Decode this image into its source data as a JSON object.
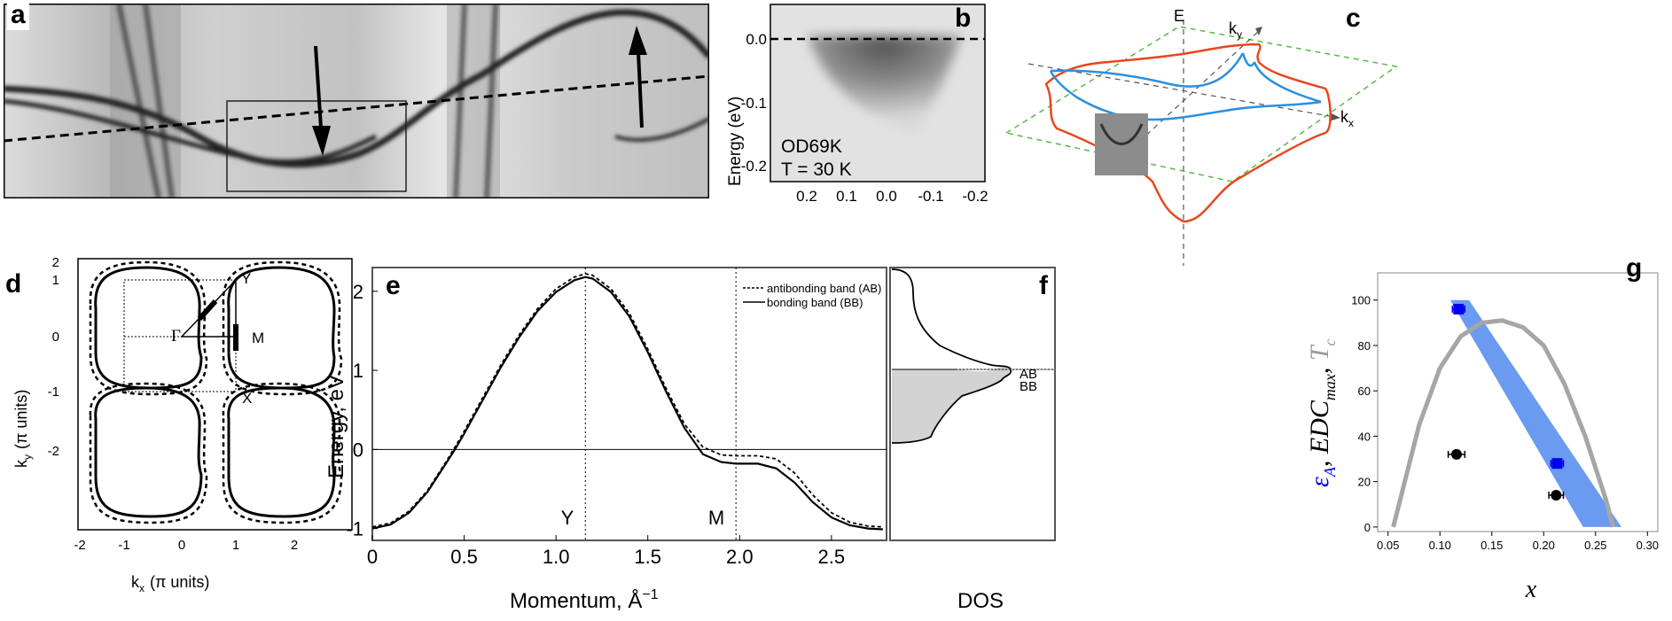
{
  "panels": {
    "a": {
      "letter": "a"
    },
    "b": {
      "letter": "b",
      "ylabel": "Energy  (eV)",
      "yticks": [
        "0.0",
        "-0.1",
        "-0.2"
      ],
      "xticks": [
        "0.2",
        "0.1",
        "0.0",
        "-0.1",
        "-0.2"
      ],
      "sample": "OD69K",
      "temperature": "T = 30 K"
    },
    "c": {
      "letter": "c",
      "axis_e": "E",
      "axis_ky": "k",
      "axis_ky_sub": "y",
      "axis_kx": "k",
      "axis_kx_sub": "x"
    },
    "d": {
      "letter": "d",
      "ylabel": "k",
      "ylabel_sub": "y",
      "ylabel_units": "(π units)",
      "xlabel": "k",
      "xlabel_sub": "x",
      "xlabel_units": "(π units)",
      "xticks": [
        "-2",
        "-1",
        "0",
        "1",
        "2"
      ],
      "yticks": [
        "2",
        "1",
        "0",
        "-1",
        "-2"
      ],
      "point_gamma": "Γ",
      "point_y": "Y",
      "point_m": "M",
      "point_x": "X"
    },
    "e": {
      "letter": "e",
      "ylabel": "Energy, eV",
      "xlabel_main": "Momentum, Å",
      "xlabel_exp": "−1",
      "xticks": [
        "0",
        "0.5",
        "1.0",
        "1.5",
        "2.0",
        "2.5"
      ],
      "yticks": [
        "2",
        "1",
        "0",
        "-1"
      ],
      "marker_y": "Y",
      "marker_m": "M",
      "legend_ab": "antibonding band (AB)",
      "legend_bb": "bonding band (BB)"
    },
    "f": {
      "letter": "f",
      "xlabel": "DOS",
      "label_ab": "AB",
      "label_bb": "BB"
    },
    "g": {
      "letter": "g",
      "xlabel": "x",
      "ylabel_parts": [
        "ε",
        "A",
        ", ",
        "EDC",
        "max",
        ", ",
        "T",
        "c"
      ],
      "xticks": [
        "0.05",
        "0.10",
        "0.15",
        "0.20",
        "0.25",
        "0.30"
      ],
      "yticks": [
        "0",
        "20",
        "40",
        "60",
        "80",
        "100"
      ]
    }
  },
  "colors": {
    "blue": "#0000ee",
    "band_blue": "#5b8ff0",
    "gray_curve": "#a6a6a6",
    "red": "#e8461e",
    "light_blue": "#2a8fe0",
    "green_dash": "#59b84a"
  },
  "chart_data": [
    {
      "type": "line",
      "panel": "e",
      "xlabel": "Momentum, Å−1",
      "ylabel": "Energy, eV",
      "xlim": [
        0,
        2.8
      ],
      "ylim": [
        -1.15,
        2.3
      ],
      "x": [
        0,
        0.1,
        0.2,
        0.3,
        0.4,
        0.45,
        0.5,
        0.6,
        0.7,
        0.8,
        0.9,
        1.0,
        1.1,
        1.16,
        1.2,
        1.3,
        1.4,
        1.5,
        1.6,
        1.7,
        1.8,
        1.9,
        1.98,
        2.1,
        2.2,
        2.3,
        2.4,
        2.5,
        2.6,
        2.7,
        2.78
      ],
      "series": [
        {
          "name": "antibonding band (AB)",
          "style": "dashed",
          "values": [
            -0.98,
            -0.93,
            -0.78,
            -0.52,
            -0.16,
            0.03,
            0.23,
            0.65,
            1.07,
            1.45,
            1.78,
            2.03,
            2.18,
            2.22,
            2.2,
            2.03,
            1.72,
            1.27,
            0.77,
            0.32,
            0.03,
            -0.07,
            -0.08,
            -0.08,
            -0.12,
            -0.3,
            -0.58,
            -0.8,
            -0.92,
            -0.97,
            -0.98
          ]
        },
        {
          "name": "bonding band (BB)",
          "style": "solid",
          "values": [
            -1.0,
            -0.95,
            -0.8,
            -0.54,
            -0.18,
            0.0,
            0.2,
            0.62,
            1.04,
            1.42,
            1.75,
            1.99,
            2.14,
            2.18,
            2.16,
            1.99,
            1.68,
            1.23,
            0.73,
            0.27,
            -0.06,
            -0.16,
            -0.18,
            -0.18,
            -0.24,
            -0.42,
            -0.67,
            -0.86,
            -0.96,
            -1.0,
            -1.01
          ]
        }
      ],
      "vlines": [
        1.16,
        1.98
      ],
      "legend": "right"
    },
    {
      "type": "scatter",
      "panel": "g",
      "xlabel": "x",
      "ylabel": "εA, EDCmax, Tc",
      "xlim": [
        0.04,
        0.31
      ],
      "ylim": [
        -2,
        112
      ],
      "series": [
        {
          "name": "εA",
          "color": "#0000ee",
          "marker": "square",
          "x": [
            0.118,
            0.213
          ],
          "y": [
            96,
            28
          ],
          "xerr": [
            0.006,
            0.006
          ]
        },
        {
          "name": "EDCmax",
          "color": "#000000",
          "marker": "circle",
          "x": [
            0.116,
            0.212
          ],
          "y": [
            32,
            14
          ],
          "xerr": [
            0.008,
            0.007
          ]
        },
        {
          "name": "Tc",
          "color": "#a6a6a6",
          "type": "line",
          "x": [
            0.055,
            0.08,
            0.1,
            0.12,
            0.14,
            0.16,
            0.18,
            0.2,
            0.22,
            0.24,
            0.26,
            0.267
          ],
          "y": [
            0,
            45,
            70,
            84,
            90,
            91,
            88,
            80,
            63,
            40,
            12,
            0
          ]
        }
      ]
    }
  ]
}
